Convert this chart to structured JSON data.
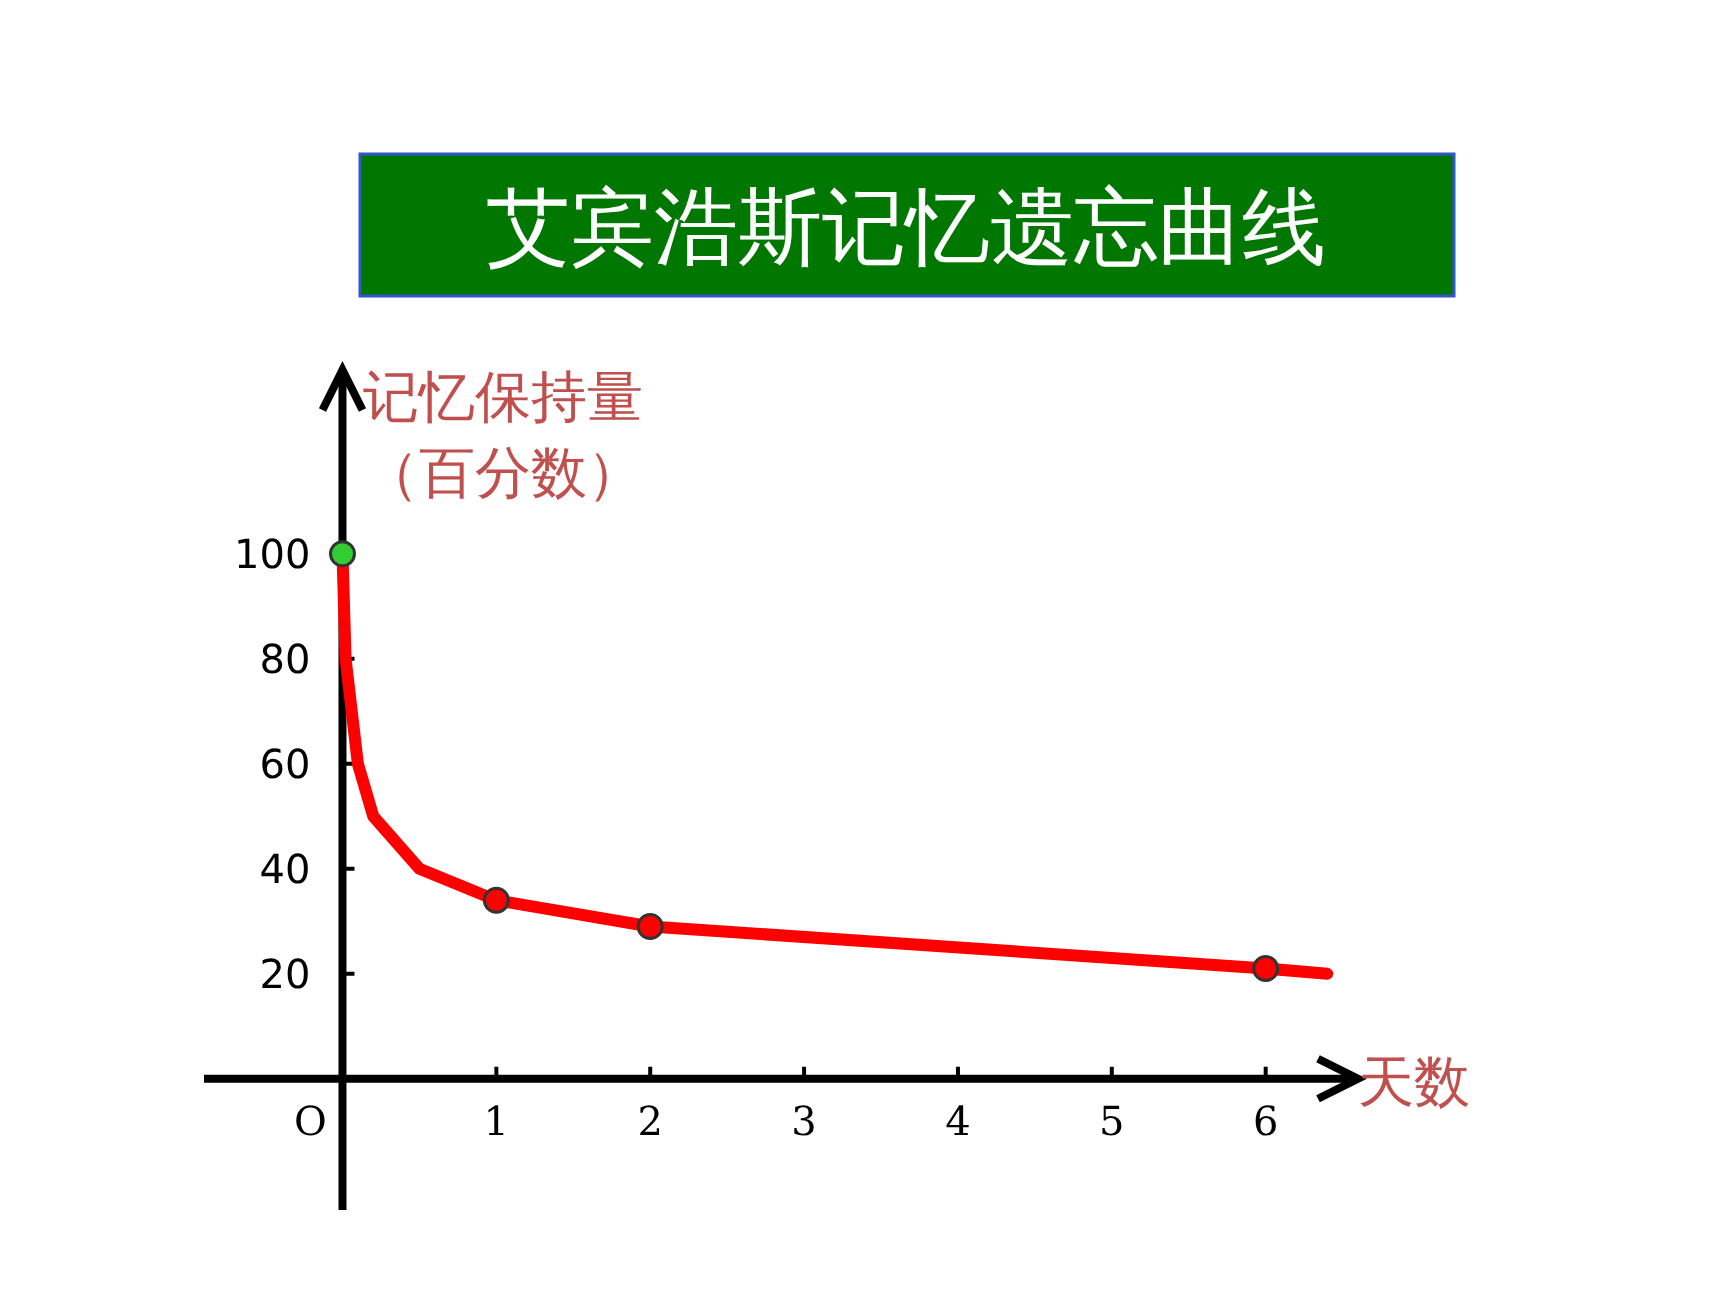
{
  "chart_data": {
    "type": "line",
    "title": "艾宾浩斯记忆遗忘曲线",
    "xlabel": "天数",
    "ylabel": "记忆保持量（百分数）",
    "xlim": [
      -0.9,
      6.6
    ],
    "ylim": [
      -25,
      135
    ],
    "xticks": [
      1,
      2,
      3,
      4,
      5,
      6
    ],
    "yticks": [
      20,
      40,
      60,
      80,
      100
    ],
    "annotations": [
      "O"
    ],
    "series": [
      {
        "color": "#ff0000",
        "marker": "none",
        "x": [
          0,
          0.02,
          0.1,
          0.2,
          0.5,
          1,
          2,
          6,
          6.4
        ],
        "values": [
          100,
          80,
          60,
          50,
          40,
          34,
          29,
          21,
          20
        ]
      },
      {
        "type": "scatter",
        "marker": "circle",
        "x": [
          0,
          1,
          2,
          6
        ],
        "values": [
          100,
          34,
          29,
          21
        ],
        "colors": [
          "#33cc33",
          "#ff0000",
          "#ff0000",
          "#ff0000"
        ]
      }
    ]
  }
}
